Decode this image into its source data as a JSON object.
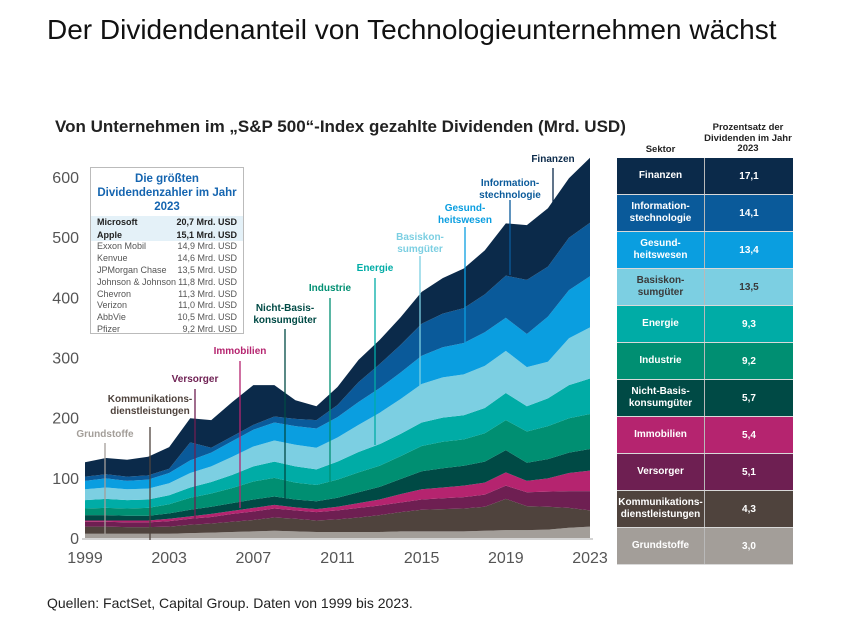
{
  "title": "Der Dividendenanteil von Technologieunternehmen wächst",
  "chart_data": {
    "type": "area",
    "stacked": true,
    "title": "Von Unternehmen im „S&P 500“-Index gezahlte Dividenden (Mrd. USD)",
    "xlabel": "",
    "ylabel": "",
    "x": [
      1999,
      2000,
      2001,
      2002,
      2003,
      2004,
      2005,
      2006,
      2007,
      2008,
      2009,
      2010,
      2011,
      2012,
      2013,
      2014,
      2015,
      2016,
      2017,
      2018,
      2019,
      2020,
      2021,
      2022,
      2023
    ],
    "xticks": [
      "1999",
      "2003",
      "2007",
      "2011",
      "2015",
      "2019",
      "2023"
    ],
    "yticks": [
      "0",
      "100",
      "200",
      "300",
      "400",
      "500",
      "600"
    ],
    "ylim": [
      0,
      640
    ],
    "grid": false,
    "series": [
      {
        "name": "Grundstoffe",
        "color": "#a39e99",
        "values": [
          7,
          7,
          7,
          7,
          7,
          8,
          9,
          10,
          11,
          12,
          11,
          10,
          10,
          10,
          10,
          11,
          11,
          11,
          11,
          12,
          13,
          13,
          14,
          17,
          19
        ]
      },
      {
        "name": "Kommunikations-dienstleistungen",
        "color": "#4f433d",
        "values": [
          12,
          12,
          11,
          11,
          12,
          14,
          15,
          17,
          19,
          22,
          21,
          19,
          21,
          24,
          28,
          32,
          36,
          37,
          38,
          40,
          52,
          40,
          38,
          33,
          27
        ]
      },
      {
        "name": "Versorger",
        "color": "#6e1f52",
        "values": [
          8,
          8,
          8,
          8,
          9,
          10,
          11,
          13,
          14,
          15,
          14,
          14,
          15,
          16,
          16,
          16,
          17,
          18,
          19,
          20,
          22,
          23,
          25,
          28,
          32
        ]
      },
      {
        "name": "Immobilien",
        "color": "#b5246f",
        "values": [
          2,
          2,
          3,
          3,
          4,
          4,
          5,
          5,
          6,
          6,
          5,
          5,
          6,
          8,
          10,
          14,
          17,
          18,
          19,
          20,
          22,
          19,
          22,
          30,
          34
        ]
      },
      {
        "name": "Nicht-Basis-konsumgüter",
        "color": "#004a45",
        "values": [
          9,
          9,
          8,
          8,
          9,
          11,
          12,
          13,
          14,
          14,
          13,
          13,
          15,
          18,
          21,
          25,
          30,
          32,
          33,
          35,
          37,
          30,
          32,
          34,
          36
        ]
      },
      {
        "name": "Industrie",
        "color": "#008f72",
        "values": [
          11,
          12,
          12,
          13,
          15,
          20,
          22,
          25,
          30,
          31,
          28,
          27,
          30,
          33,
          35,
          38,
          42,
          44,
          44,
          47,
          50,
          52,
          55,
          57,
          58
        ]
      },
      {
        "name": "Energie",
        "color": "#00aca6",
        "values": [
          14,
          15,
          14,
          14,
          15,
          17,
          19,
          22,
          25,
          27,
          27,
          26,
          30,
          34,
          36,
          37,
          39,
          40,
          40,
          42,
          45,
          42,
          46,
          55,
          59
        ]
      },
      {
        "name": "Basiskonsumgüter",
        "color": "#7ccfe2",
        "values": [
          18,
          19,
          18,
          18,
          20,
          24,
          26,
          30,
          33,
          35,
          36,
          36,
          40,
          45,
          52,
          58,
          64,
          67,
          68,
          70,
          70,
          65,
          61,
          78,
          85
        ]
      },
      {
        "name": "Gesundheitswesen",
        "color": "#0a9ee0",
        "values": [
          14,
          15,
          14,
          15,
          17,
          21,
          23,
          26,
          28,
          30,
          31,
          32,
          34,
          38,
          41,
          44,
          47,
          50,
          52,
          56,
          55,
          55,
          75,
          80,
          85
        ]
      },
      {
        "name": "Informationstechnologie",
        "color": "#0a5a9a",
        "values": [
          7,
          7,
          7,
          7,
          7,
          30,
          8,
          8,
          8,
          10,
          12,
          14,
          20,
          33,
          40,
          46,
          53,
          56,
          58,
          63,
          70,
          90,
          83,
          87,
          89
        ]
      },
      {
        "name": "Finanzen",
        "color": "#0b2a4a",
        "values": [
          24,
          27,
          28,
          31,
          36,
          40,
          46,
          57,
          66,
          52,
          31,
          23,
          30,
          37,
          40,
          46,
          53,
          59,
          66,
          73,
          87,
          91,
          97,
          99,
          108
        ]
      }
    ],
    "annotations": [
      "Grundstoffe",
      "Kommunikations-\ndienstleistungen",
      "Versorger",
      "Immobilien",
      "Nicht-Basis-\nkonsumgüter",
      "Industrie",
      "Energie",
      "Basiskon-\nsumgüter",
      "Gesund-\nheitswesen",
      "Information-\nstechnologie",
      "Finanzen"
    ]
  },
  "inset": {
    "title": "Die größten Dividendenzahler im Jahr 2023",
    "rows": [
      {
        "company": "Microsoft",
        "value": "20,7 Mrd. USD",
        "highlight": true
      },
      {
        "company": "Apple",
        "value": "15,1 Mrd. USD",
        "highlight": true
      },
      {
        "company": "Exxon Mobil",
        "value": "14,9 Mrd. USD"
      },
      {
        "company": "Kenvue",
        "value": "14,6 Mrd. USD"
      },
      {
        "company": "JPMorgan Chase",
        "value": "13,5 Mrd. USD"
      },
      {
        "company": "Johnson & Johnson",
        "value": "11,8 Mrd. USD"
      },
      {
        "company": "Chevron",
        "value": "11,3 Mrd. USD"
      },
      {
        "company": "Verizon",
        "value": "11,0 Mrd. USD"
      },
      {
        "company": "AbbVie",
        "value": "10,5 Mrd. USD"
      },
      {
        "company": "Pfizer",
        "value": "9,2 Mrd. USD"
      }
    ]
  },
  "table": {
    "header_sector": "Sektor",
    "header_percent": "Prozentsatz der Dividenden im Jahr 2023",
    "rows": [
      {
        "sector": "Finanzen",
        "percent": "17,1",
        "color": "#0b2a4a"
      },
      {
        "sector": "Information-\nstechnologie",
        "percent": "14,1",
        "color": "#0a5a9a"
      },
      {
        "sector": "Gesund-\nheitswesen",
        "percent": "13,4",
        "color": "#0a9ee0"
      },
      {
        "sector": "Basiskon-\nsumgüter",
        "percent": "13,5",
        "color": "#7ccfe2",
        "dark_text": true
      },
      {
        "sector": "Energie",
        "percent": "9,3",
        "color": "#00aca6"
      },
      {
        "sector": "Industrie",
        "percent": "9,2",
        "color": "#008f72"
      },
      {
        "sector": "Nicht-Basis-\nkonsumgüter",
        "percent": "5,7",
        "color": "#004a45"
      },
      {
        "sector": "Immobilien",
        "percent": "5,4",
        "color": "#b5246f"
      },
      {
        "sector": "Versorger",
        "percent": "5,1",
        "color": "#6e1f52"
      },
      {
        "sector": "Kommunikations-\ndienstleistungen",
        "percent": "4,3",
        "color": "#4f433d"
      },
      {
        "sector": "Grundstoffe",
        "percent": "3,0",
        "color": "#a39e99"
      }
    ]
  },
  "footer": "Quellen: FactSet, Capital Group. Daten von 1999 bis 2023."
}
